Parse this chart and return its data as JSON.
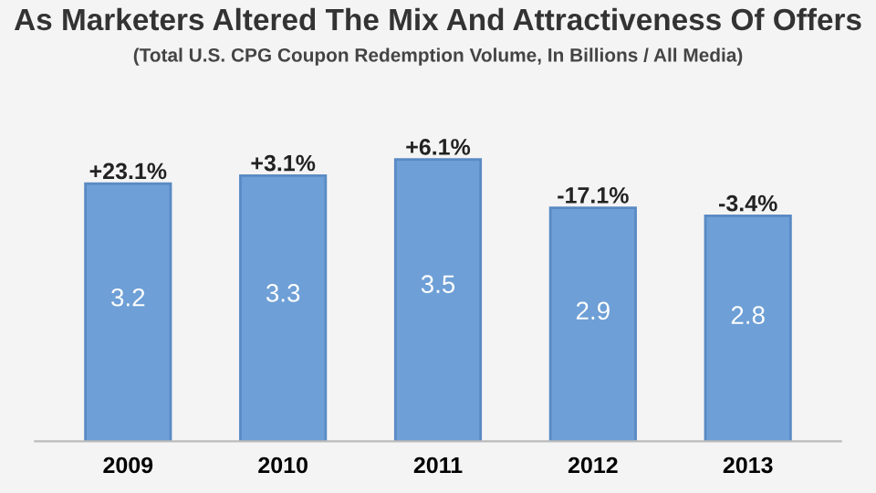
{
  "chart_data": {
    "type": "bar",
    "title": "As Marketers Altered The Mix And Attractiveness Of Offers",
    "subtitle": "(Total U.S. CPG Coupon Redemption Volume, In Billions / All Media)",
    "categories": [
      "2009",
      "2010",
      "2011",
      "2012",
      "2013"
    ],
    "values": [
      3.2,
      3.3,
      3.5,
      2.9,
      2.8
    ],
    "color": "#6e9fd6",
    "data_labels": true,
    "annotations": [
      {
        "text": "+23.1%",
        "x": "2009",
        "y": 3.2
      },
      {
        "text": "+3.1%",
        "x": "2010",
        "y": 3.3
      },
      {
        "text": "+6.1%",
        "x": "2011",
        "y": 3.5
      },
      {
        "text": "-17.1%",
        "x": "2012",
        "y": 2.9
      },
      {
        "text": "-3.4%",
        "x": "2013",
        "y": 2.8
      }
    ]
  }
}
